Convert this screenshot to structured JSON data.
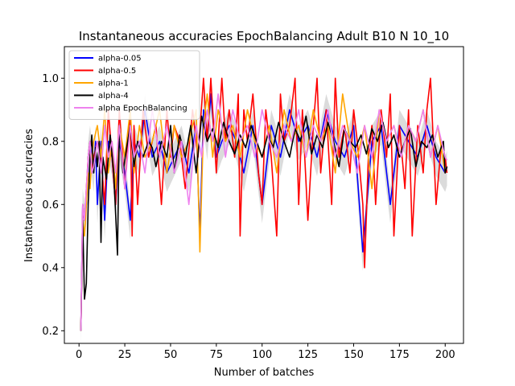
{
  "chart_data": {
    "type": "line",
    "title": "Instantaneous accuracies EpochBalancing Adult B10 N 10_10",
    "xlabel": "Number of batches",
    "ylabel": "Instantaneous accuracies",
    "xlim": [
      -8,
      210
    ],
    "ylim": [
      0.16,
      1.1
    ],
    "xticks": [
      0,
      25,
      50,
      75,
      100,
      125,
      150,
      175,
      200
    ],
    "yticks": [
      0.2,
      0.4,
      0.6,
      0.8,
      1.0
    ],
    "ytick_labels": [
      "0.2",
      "0.4",
      "0.6",
      "0.8",
      "1.0"
    ],
    "legend_position": "upper-left",
    "grid": false,
    "band_color": "#bdbdbd",
    "series": [
      {
        "name": "alpha-0.05",
        "color": "#0000ff",
        "x": [
          1,
          2,
          3,
          4,
          5,
          6,
          7,
          8,
          9,
          10,
          12,
          14,
          16,
          18,
          20,
          22,
          25,
          28,
          30,
          33,
          36,
          40,
          44,
          48,
          52,
          56,
          60,
          64,
          66,
          68,
          70,
          72,
          75,
          78,
          82,
          86,
          90,
          95,
          100,
          105,
          110,
          115,
          120,
          125,
          130,
          135,
          140,
          145,
          150,
          155,
          160,
          165,
          170,
          175,
          180,
          185,
          190,
          195,
          200,
          201
        ],
        "y": [
          0.2,
          0.6,
          0.55,
          0.6,
          0.75,
          0.8,
          0.75,
          0.7,
          0.8,
          0.6,
          0.8,
          0.55,
          0.8,
          0.75,
          0.6,
          0.8,
          0.7,
          0.55,
          0.8,
          0.75,
          0.9,
          0.75,
          0.8,
          0.7,
          0.75,
          0.8,
          0.7,
          0.85,
          0.5,
          0.9,
          0.8,
          0.95,
          0.75,
          0.8,
          0.85,
          0.8,
          0.7,
          0.85,
          0.6,
          0.85,
          0.75,
          0.9,
          0.8,
          0.85,
          0.75,
          0.9,
          0.8,
          0.75,
          0.85,
          0.45,
          0.8,
          0.85,
          0.6,
          0.85,
          0.8,
          0.75,
          0.85,
          0.75,
          0.7,
          0.72
        ]
      },
      {
        "name": "alpha-0.5",
        "color": "#ff0000",
        "x": [
          1,
          2,
          3,
          4,
          5,
          6,
          7,
          8,
          10,
          12,
          14,
          16,
          18,
          20,
          22,
          25,
          28,
          29,
          30,
          32,
          35,
          38,
          42,
          45,
          48,
          50,
          52,
          55,
          58,
          62,
          65,
          68,
          70,
          72,
          75,
          78,
          80,
          82,
          85,
          87,
          88,
          90,
          92,
          95,
          98,
          100,
          102,
          105,
          108,
          110,
          112,
          115,
          118,
          120,
          122,
          125,
          128,
          130,
          132,
          135,
          138,
          140,
          142,
          145,
          148,
          150,
          152,
          155,
          156,
          158,
          160,
          162,
          165,
          168,
          170,
          172,
          175,
          178,
          180,
          182,
          185,
          188,
          190,
          192,
          195,
          198,
          200,
          201
        ],
        "y": [
          0.2,
          0.6,
          0.55,
          0.65,
          0.75,
          0.8,
          0.7,
          0.75,
          0.8,
          0.75,
          0.6,
          0.9,
          0.75,
          0.6,
          0.9,
          0.65,
          0.9,
          0.5,
          0.85,
          0.6,
          0.9,
          0.75,
          0.85,
          0.6,
          0.9,
          0.75,
          0.85,
          0.8,
          0.65,
          0.9,
          0.75,
          1.0,
          0.8,
          1.0,
          0.7,
          1.0,
          0.8,
          0.9,
          0.75,
          0.95,
          0.5,
          0.9,
          0.8,
          0.95,
          0.7,
          0.6,
          0.9,
          0.75,
          0.5,
          0.95,
          0.8,
          0.85,
          1.0,
          0.6,
          0.9,
          0.55,
          0.85,
          1.0,
          0.7,
          0.9,
          0.6,
          1.0,
          0.75,
          0.85,
          0.7,
          0.9,
          0.8,
          0.6,
          0.4,
          0.75,
          0.85,
          0.6,
          0.9,
          0.75,
          0.95,
          0.5,
          0.85,
          0.65,
          0.9,
          0.5,
          0.85,
          0.7,
          0.9,
          1.0,
          0.6,
          0.8,
          0.75,
          0.7
        ]
      },
      {
        "name": "alpha-1",
        "color": "#ffa500",
        "x": [
          1,
          2,
          3,
          4,
          5,
          6,
          7,
          8,
          10,
          12,
          14,
          16,
          18,
          20,
          22,
          25,
          28,
          30,
          33,
          36,
          40,
          44,
          48,
          52,
          56,
          60,
          64,
          66,
          68,
          70,
          73,
          76,
          80,
          84,
          88,
          92,
          96,
          100,
          104,
          108,
          112,
          116,
          120,
          124,
          128,
          132,
          136,
          140,
          144,
          148,
          152,
          156,
          160,
          164,
          168,
          172,
          176,
          180,
          184,
          188,
          192,
          196,
          200,
          201
        ],
        "y": [
          0.2,
          0.55,
          0.5,
          0.6,
          0.7,
          0.65,
          0.75,
          0.8,
          0.85,
          0.75,
          0.9,
          0.7,
          0.8,
          0.65,
          0.85,
          0.75,
          0.9,
          0.7,
          0.85,
          0.75,
          0.8,
          0.9,
          0.7,
          0.85,
          0.75,
          0.8,
          0.9,
          0.45,
          0.85,
          0.95,
          0.75,
          0.9,
          0.8,
          0.85,
          0.75,
          0.9,
          0.8,
          0.75,
          0.85,
          0.7,
          0.9,
          0.8,
          0.85,
          0.75,
          0.9,
          0.8,
          0.85,
          0.7,
          0.95,
          0.8,
          0.75,
          0.85,
          0.65,
          0.9,
          0.8,
          0.85,
          0.75,
          0.85,
          0.8,
          0.9,
          0.75,
          0.85,
          0.7,
          0.72
        ]
      },
      {
        "name": "alpha-4",
        "color": "#000000",
        "x": [
          1,
          2,
          3,
          4,
          5,
          6,
          7,
          8,
          9,
          10,
          11,
          12,
          13,
          15,
          17,
          19,
          21,
          22,
          24,
          26,
          28,
          30,
          32,
          35,
          38,
          40,
          42,
          45,
          48,
          50,
          52,
          55,
          58,
          61,
          64,
          67,
          70,
          73,
          76,
          79,
          82,
          85,
          88,
          91,
          94,
          97,
          100,
          103,
          106,
          109,
          112,
          115,
          118,
          121,
          124,
          127,
          130,
          133,
          136,
          139,
          142,
          145,
          148,
          151,
          154,
          157,
          160,
          163,
          166,
          169,
          172,
          175,
          178,
          181,
          184,
          187,
          190,
          193,
          196,
          199,
          200,
          201
        ],
        "y": [
          0.2,
          0.55,
          0.3,
          0.35,
          0.6,
          0.75,
          0.82,
          0.7,
          0.78,
          0.72,
          0.8,
          0.48,
          0.75,
          0.68,
          0.82,
          0.7,
          0.44,
          0.85,
          0.7,
          0.78,
          0.85,
          0.72,
          0.8,
          0.75,
          0.8,
          0.78,
          0.72,
          0.8,
          0.75,
          0.85,
          0.7,
          0.82,
          0.75,
          0.85,
          0.7,
          0.88,
          0.8,
          0.84,
          0.78,
          0.86,
          0.8,
          0.76,
          0.82,
          0.78,
          0.85,
          0.8,
          0.75,
          0.82,
          0.78,
          0.86,
          0.8,
          0.75,
          0.84,
          0.8,
          0.88,
          0.76,
          0.82,
          0.78,
          0.86,
          0.8,
          0.72,
          0.84,
          0.8,
          0.78,
          0.82,
          0.76,
          0.84,
          0.8,
          0.86,
          0.78,
          0.82,
          0.75,
          0.8,
          0.84,
          0.72,
          0.8,
          0.78,
          0.82,
          0.75,
          0.8,
          0.7,
          0.72
        ]
      },
      {
        "name": "alpha EpochBalancing",
        "color": "#ee82ee",
        "x": [
          1,
          2,
          3,
          4,
          5,
          6,
          7,
          8,
          10,
          12,
          14,
          16,
          18,
          20,
          22,
          25,
          28,
          30,
          33,
          36,
          40,
          44,
          48,
          52,
          56,
          60,
          64,
          67,
          70,
          73,
          76,
          80,
          84,
          88,
          92,
          96,
          100,
          104,
          108,
          112,
          116,
          120,
          124,
          128,
          132,
          136,
          140,
          144,
          148,
          152,
          156,
          160,
          164,
          168,
          172,
          176,
          180,
          184,
          188,
          192,
          196,
          200,
          201
        ],
        "y": [
          0.2,
          0.6,
          0.55,
          0.65,
          0.75,
          0.8,
          0.7,
          0.72,
          0.8,
          0.7,
          0.85,
          0.75,
          0.8,
          0.7,
          0.85,
          0.65,
          0.85,
          0.75,
          0.8,
          0.7,
          0.9,
          0.75,
          0.85,
          0.7,
          0.8,
          0.6,
          0.85,
          0.75,
          0.9,
          0.8,
          0.95,
          0.75,
          0.9,
          0.8,
          0.85,
          0.75,
          0.9,
          0.8,
          0.75,
          0.85,
          0.8,
          0.9,
          0.75,
          0.85,
          0.8,
          0.9,
          0.75,
          0.85,
          0.8,
          0.7,
          0.85,
          0.75,
          0.9,
          0.8,
          0.85,
          0.75,
          0.85,
          0.8,
          0.9,
          0.75,
          0.85,
          0.75,
          0.74
        ]
      }
    ]
  }
}
